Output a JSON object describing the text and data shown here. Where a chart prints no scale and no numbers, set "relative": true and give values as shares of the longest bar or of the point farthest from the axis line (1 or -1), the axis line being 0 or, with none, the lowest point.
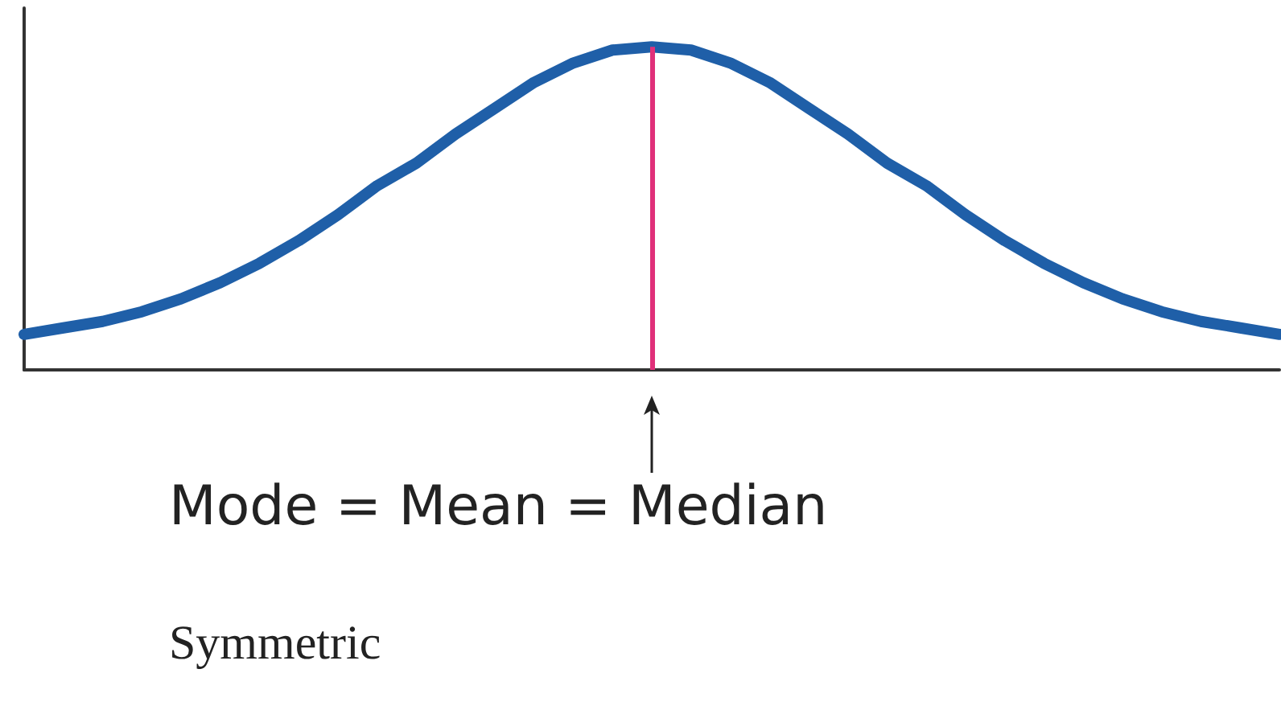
{
  "chart_data": {
    "type": "line",
    "relative": true,
    "categories": [
      null,
      null,
      null,
      null,
      null,
      null,
      null,
      null,
      null,
      null,
      null,
      null,
      null,
      null,
      null,
      null,
      null,
      null,
      null,
      null,
      null,
      null,
      null,
      null,
      null,
      null,
      null,
      null,
      null,
      null,
      null,
      null,
      null
    ],
    "series": [
      {
        "color": "#1f5fa8",
        "values": [
          0.11,
          0.13,
          0.15,
          0.18,
          0.22,
          0.27,
          0.33,
          0.4,
          0.48,
          0.57,
          0.64,
          0.73,
          0.81,
          0.89,
          0.95,
          0.99,
          1,
          0.99,
          0.95,
          0.89,
          0.81,
          0.73,
          0.64,
          0.57,
          0.48,
          0.4,
          0.33,
          0.27,
          0.22,
          0.18,
          0.15,
          0.13,
          0.11
        ]
      }
    ],
    "ref_lines": [
      {
        "axis": "x",
        "label": "Mode = Mean = Median",
        "color": "#e0307a"
      }
    ],
    "marker": "none",
    "tick_labels": false,
    "grid": false,
    "annotations": [
      "Symmetric"
    ]
  }
}
